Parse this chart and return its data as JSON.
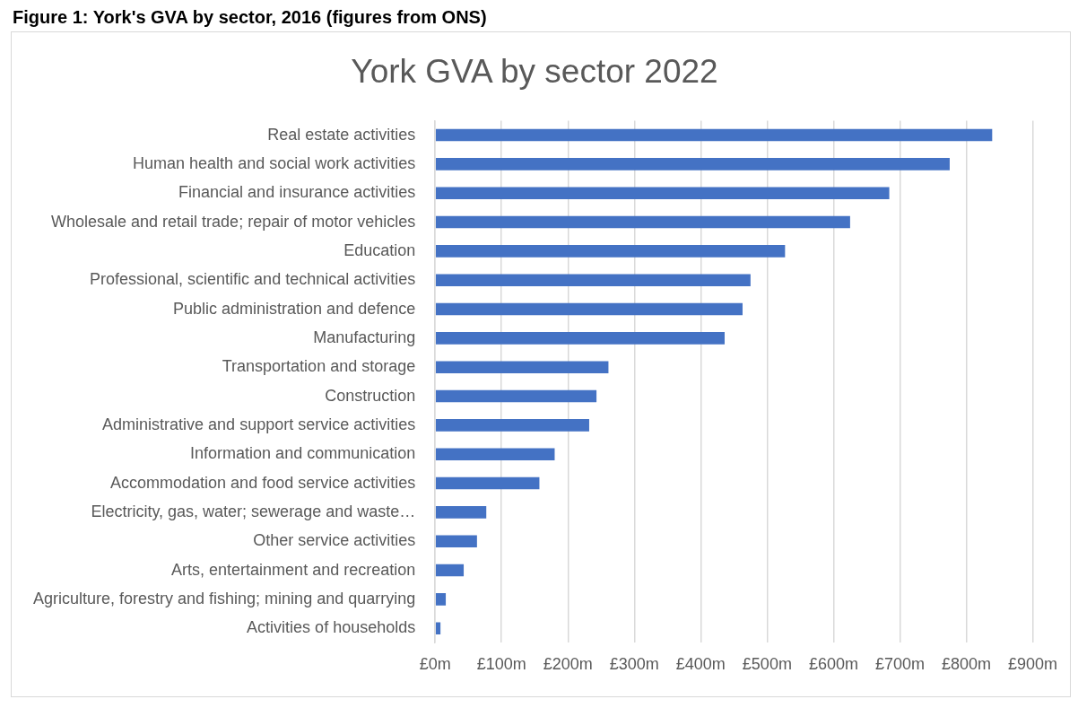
{
  "chart_data": {
    "type": "bar",
    "orientation": "horizontal",
    "title": "York GVA by sector 2022",
    "annotations": [
      "Figure 1: York's GVA by sector, 2016 (figures from ONS)"
    ],
    "categories": [
      "Real estate activities",
      "Human health and social work activities",
      "Financial and insurance activities",
      "Wholesale and retail trade; repair of motor vehicles",
      "Education",
      "Professional, scientific and technical activities",
      "Public administration and defence",
      "Manufacturing",
      "Transportation and storage",
      "Construction",
      "Administrative and support service activities",
      "Information and communication",
      "Accommodation and food service activities",
      "Electricity, gas, water; sewerage and waste…",
      "Other service activities",
      "Arts, entertainment and recreation",
      "Agriculture, forestry and fishing; mining and quarrying",
      "Activities of households"
    ],
    "values": [
      839,
      775,
      684,
      625,
      527,
      475,
      463,
      436,
      261,
      243,
      232,
      180,
      157,
      77,
      63,
      43,
      16,
      8
    ],
    "color": "#4472c4",
    "xlim": [
      0,
      900
    ],
    "xticks": [
      {
        "value": 0,
        "label": "£0m"
      },
      {
        "value": 100,
        "label": "£100m"
      },
      {
        "value": 200,
        "label": "£200m"
      },
      {
        "value": 300,
        "label": "£300m"
      },
      {
        "value": 400,
        "label": "£400m"
      },
      {
        "value": 500,
        "label": "£500m"
      },
      {
        "value": 600,
        "label": "£600m"
      },
      {
        "value": 700,
        "label": "£700m"
      },
      {
        "value": 800,
        "label": "£800m"
      },
      {
        "value": 900,
        "label": "£900m"
      }
    ],
    "grid": "x",
    "legend": false
  }
}
